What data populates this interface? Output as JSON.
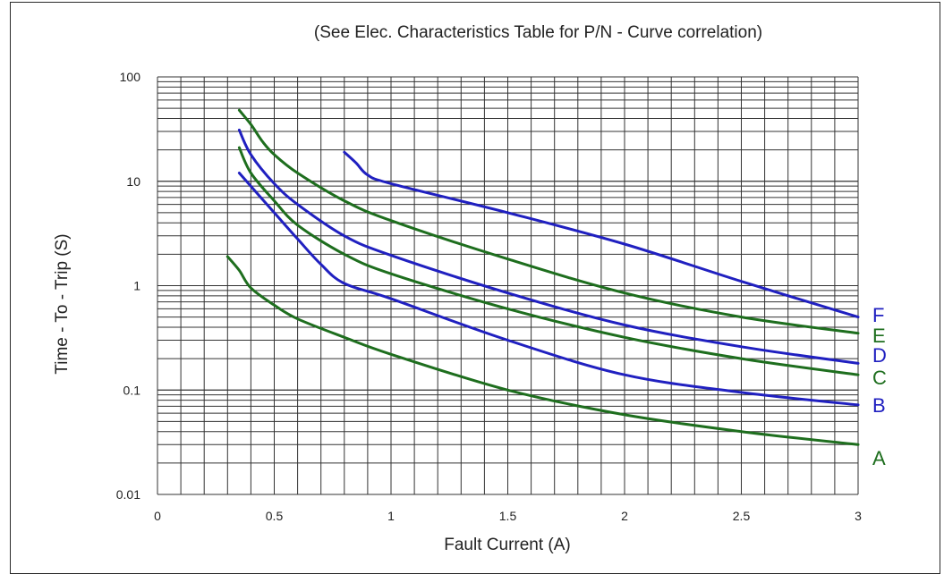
{
  "chart_data": {
    "type": "line",
    "title": "(See Elec. Characteristics Table for P/N - Curve correlation)",
    "xlabel": "Fault Current (A)",
    "ylabel": "Time - To - Trip (S)",
    "xlim": [
      0,
      3
    ],
    "ylim": [
      0.01,
      100
    ],
    "yscale": "log",
    "grid": true,
    "x_ticks": [
      "0",
      "0.5",
      "1",
      "1.5",
      "2",
      "2.5",
      "3"
    ],
    "y_ticks": [
      "0.01",
      "0.1",
      "1",
      "10",
      "100"
    ],
    "series": [
      {
        "name": "A",
        "color": "#1e6e1e",
        "x": [
          0.3,
          0.35,
          0.4,
          0.5,
          0.6,
          0.8,
          1.0,
          1.5,
          2.0,
          2.5,
          3.0
        ],
        "y": [
          1.9,
          1.4,
          0.95,
          0.65,
          0.48,
          0.32,
          0.22,
          0.1,
          0.058,
          0.04,
          0.03
        ]
      },
      {
        "name": "B",
        "color": "#2020c0",
        "x": [
          0.35,
          0.5,
          0.6,
          0.7,
          0.8,
          1.0,
          1.5,
          2.0,
          2.5,
          3.0
        ],
        "y": [
          12,
          5,
          2.8,
          1.6,
          1.05,
          0.75,
          0.3,
          0.14,
          0.095,
          0.072
        ]
      },
      {
        "name": "C",
        "color": "#1e6e1e",
        "x": [
          0.35,
          0.4,
          0.5,
          0.6,
          0.8,
          1.0,
          1.5,
          2.0,
          2.5,
          3.0
        ],
        "y": [
          21,
          12,
          6.5,
          3.8,
          2.0,
          1.3,
          0.6,
          0.32,
          0.2,
          0.14
        ]
      },
      {
        "name": "D",
        "color": "#2020c0",
        "x": [
          0.35,
          0.4,
          0.5,
          0.6,
          0.8,
          1.0,
          1.5,
          2.0,
          2.5,
          3.0
        ],
        "y": [
          31,
          18,
          9.5,
          6,
          3,
          1.95,
          0.85,
          0.42,
          0.26,
          0.18
        ]
      },
      {
        "name": "E",
        "color": "#1e6e1e",
        "x": [
          0.35,
          0.4,
          0.45,
          0.5,
          0.6,
          0.8,
          1.0,
          1.5,
          2.0,
          2.5,
          3.0
        ],
        "y": [
          48,
          35,
          24,
          18,
          12,
          6.5,
          4.2,
          1.8,
          0.85,
          0.5,
          0.35
        ]
      },
      {
        "name": "F",
        "color": "#2020c0",
        "x": [
          0.8,
          0.85,
          0.9,
          1.0,
          1.5,
          2.0,
          2.5,
          3.0
        ],
        "y": [
          19,
          15,
          11.5,
          9.5,
          5,
          2.5,
          1.1,
          0.5
        ]
      }
    ]
  }
}
